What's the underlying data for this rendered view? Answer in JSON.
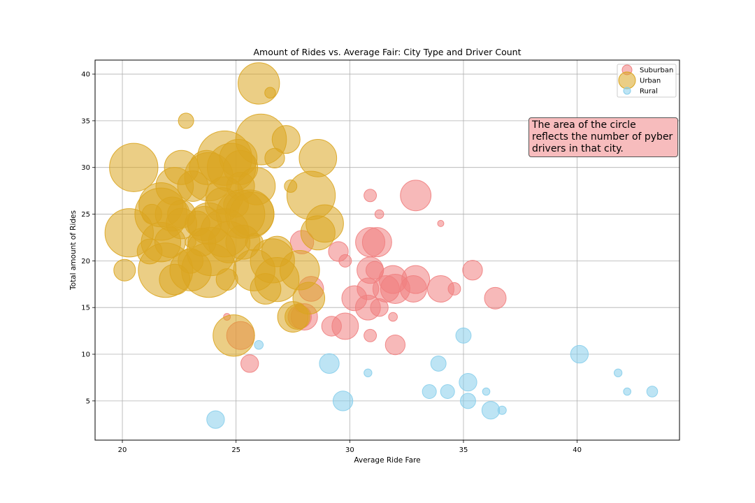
{
  "chart_data": {
    "type": "scatter",
    "title": "Amount of Rides vs. Average Fair: City Type and Driver Count",
    "xlabel": "Average Ride Fare",
    "ylabel": "Total amount of Rides",
    "xlim": [
      18.8,
      44.5
    ],
    "ylim": [
      0.8,
      41.5
    ],
    "xticks": [
      20,
      25,
      30,
      35,
      40
    ],
    "yticks": [
      5,
      10,
      15,
      20,
      25,
      30,
      35,
      40
    ],
    "grid": true,
    "legend_position": "top-right",
    "annotation": "The area of the circle reflects the number of pyber drivers in that city.",
    "series": [
      {
        "name": "Suburban",
        "color": "#f08080",
        "points": [
          [
            30.9,
            27,
            2
          ],
          [
            32.9,
            27,
            12
          ],
          [
            31.3,
            25,
            1
          ],
          [
            34.0,
            24,
            0.5
          ],
          [
            27.9,
            22,
            7
          ],
          [
            30.9,
            22,
            11
          ],
          [
            31.2,
            22,
            11
          ],
          [
            29.5,
            21,
            5
          ],
          [
            29.8,
            20,
            2
          ],
          [
            30.9,
            19,
            9
          ],
          [
            31.1,
            19,
            4
          ],
          [
            35.4,
            19,
            5
          ],
          [
            31.9,
            18,
            10
          ],
          [
            32.9,
            18,
            10
          ],
          [
            28.3,
            17,
            8
          ],
          [
            30.8,
            17,
            6
          ],
          [
            31.6,
            17,
            9
          ],
          [
            32.0,
            17,
            11
          ],
          [
            32.8,
            17,
            9
          ],
          [
            34.0,
            17,
            9
          ],
          [
            34.6,
            17,
            2
          ],
          [
            30.2,
            16,
            8
          ],
          [
            36.4,
            16,
            6
          ],
          [
            30.8,
            15,
            8
          ],
          [
            31.3,
            15,
            4
          ],
          [
            27.8,
            15,
            1
          ],
          [
            27.8,
            14,
            7
          ],
          [
            28.0,
            14,
            9
          ],
          [
            24.6,
            14,
            0.6
          ],
          [
            31.9,
            14,
            1
          ],
          [
            25.2,
            12,
            10
          ],
          [
            30.9,
            12,
            2
          ],
          [
            29.2,
            13,
            5
          ],
          [
            29.8,
            13,
            9
          ],
          [
            32.0,
            11,
            5
          ],
          [
            25.6,
            9,
            4
          ]
        ]
      },
      {
        "name": "Urban",
        "color": "#daa520",
        "points": [
          [
            26.0,
            39,
            22
          ],
          [
            26.5,
            38,
            1.5
          ],
          [
            22.8,
            35,
            3
          ],
          [
            26.1,
            33,
            33
          ],
          [
            27.2,
            33,
            10
          ],
          [
            24.5,
            31,
            38
          ],
          [
            25.1,
            31,
            18
          ],
          [
            26.7,
            31,
            5
          ],
          [
            28.6,
            31,
            18
          ],
          [
            20.5,
            30,
            30
          ],
          [
            22.6,
            30,
            15
          ],
          [
            23.7,
            30,
            15
          ],
          [
            24.8,
            30,
            30
          ],
          [
            25.2,
            30,
            15
          ],
          [
            23.8,
            29,
            30
          ],
          [
            22.3,
            28,
            18
          ],
          [
            23.1,
            28,
            12
          ],
          [
            25.2,
            28,
            10
          ],
          [
            25.9,
            28,
            18
          ],
          [
            27.4,
            28,
            2
          ],
          [
            24.5,
            27,
            18
          ],
          [
            28.3,
            27,
            30
          ],
          [
            21.7,
            26,
            25
          ],
          [
            24.4,
            26,
            15
          ],
          [
            25.0,
            26,
            8
          ],
          [
            21.3,
            25,
            5
          ],
          [
            21.7,
            25,
            35
          ],
          [
            22.2,
            25,
            15
          ],
          [
            22.6,
            25,
            10
          ],
          [
            25.2,
            25,
            30
          ],
          [
            25.6,
            25,
            30
          ],
          [
            25.7,
            25,
            25
          ],
          [
            22.6,
            24,
            12
          ],
          [
            23.3,
            24,
            8
          ],
          [
            23.6,
            24,
            15
          ],
          [
            23.8,
            24,
            22
          ],
          [
            28.9,
            24,
            18
          ],
          [
            20.3,
            23,
            30
          ],
          [
            24.5,
            23,
            30
          ],
          [
            28.6,
            23,
            15
          ],
          [
            21.7,
            22,
            20
          ],
          [
            22.1,
            22,
            12
          ],
          [
            23.0,
            22,
            1.5
          ],
          [
            23.5,
            22,
            10
          ],
          [
            24.7,
            22,
            22
          ],
          [
            25.3,
            22,
            15
          ],
          [
            25.8,
            22,
            4
          ],
          [
            21.2,
            21,
            8
          ],
          [
            23.9,
            21,
            30
          ],
          [
            26.8,
            21,
            12
          ],
          [
            23.0,
            20,
            8
          ],
          [
            26.6,
            20,
            25
          ],
          [
            20.1,
            19,
            6
          ],
          [
            21.9,
            19,
            38
          ],
          [
            23.0,
            19,
            22
          ],
          [
            23.8,
            19,
            38
          ],
          [
            25.8,
            19,
            22
          ],
          [
            27.8,
            19,
            20
          ],
          [
            22.3,
            18,
            12
          ],
          [
            24.6,
            18,
            6
          ],
          [
            26.8,
            18,
            25
          ],
          [
            26.3,
            17,
            12
          ],
          [
            28.2,
            16,
            13
          ],
          [
            27.5,
            14,
            12
          ],
          [
            27.7,
            14,
            8
          ],
          [
            24.9,
            12,
            22
          ]
        ]
      },
      {
        "name": "Rural",
        "color": "#87ceeb",
        "points": [
          [
            35.0,
            12,
            3
          ],
          [
            26.0,
            11,
            1
          ],
          [
            40.1,
            10,
            4
          ],
          [
            29.1,
            9,
            5
          ],
          [
            33.9,
            9,
            3
          ],
          [
            30.8,
            8,
            0.8
          ],
          [
            41.8,
            8,
            0.8
          ],
          [
            33.5,
            6,
            2.5
          ],
          [
            34.3,
            6,
            2.5
          ],
          [
            36.0,
            6,
            0.7
          ],
          [
            42.2,
            6,
            0.7
          ],
          [
            43.3,
            6,
            1.5
          ],
          [
            35.2,
            7,
            4
          ],
          [
            29.7,
            5,
            5
          ],
          [
            35.2,
            5,
            3
          ],
          [
            36.2,
            4,
            4
          ],
          [
            36.7,
            4,
            0.9
          ],
          [
            24.1,
            3,
            4
          ]
        ]
      }
    ]
  }
}
